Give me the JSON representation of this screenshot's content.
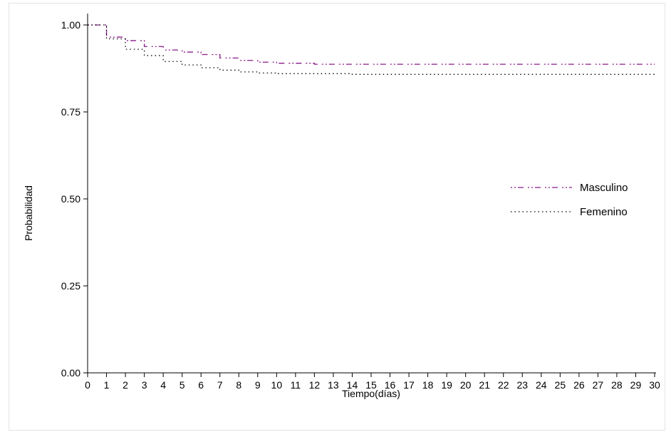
{
  "chart_data": {
    "type": "line",
    "title": "",
    "xlabel": "Tiempo(días)",
    "ylabel": "Probabilidad",
    "xlim": [
      0,
      30
    ],
    "ylim": [
      0,
      1
    ],
    "x_ticks": [
      "0",
      "1",
      "2",
      "3",
      "4",
      "5",
      "6",
      "7",
      "8",
      "9",
      "10",
      "11",
      "12",
      "13",
      "14",
      "15",
      "16",
      "17",
      "18",
      "19",
      "20",
      "21",
      "22",
      "23",
      "24",
      "25",
      "26",
      "27",
      "28",
      "29",
      "30"
    ],
    "y_ticks": [
      "0.00",
      "0.25",
      "0.50",
      "0.75",
      "1.00"
    ],
    "grid": false,
    "legend_position": "right",
    "series": [
      {
        "name": "Masculino",
        "color": "#8B1A8B",
        "style": "dash-dot",
        "points": [
          [
            0,
            1.0
          ],
          [
            1,
            0.965
          ],
          [
            2,
            0.955
          ],
          [
            3,
            0.938
          ],
          [
            4,
            0.928
          ],
          [
            5,
            0.922
          ],
          [
            6,
            0.915
          ],
          [
            7,
            0.905
          ],
          [
            8,
            0.898
          ],
          [
            9,
            0.893
          ],
          [
            10,
            0.89
          ],
          [
            12,
            0.887
          ],
          [
            14,
            0.887
          ],
          [
            30,
            0.887
          ]
        ]
      },
      {
        "name": "Femenino",
        "color": "#000000",
        "style": "dotted",
        "points": [
          [
            0,
            1.0
          ],
          [
            1,
            0.96
          ],
          [
            2,
            0.93
          ],
          [
            3,
            0.912
          ],
          [
            4,
            0.895
          ],
          [
            5,
            0.885
          ],
          [
            6,
            0.877
          ],
          [
            7,
            0.87
          ],
          [
            8,
            0.865
          ],
          [
            9,
            0.862
          ],
          [
            10,
            0.86
          ],
          [
            14,
            0.858
          ],
          [
            30,
            0.858
          ]
        ]
      }
    ]
  }
}
